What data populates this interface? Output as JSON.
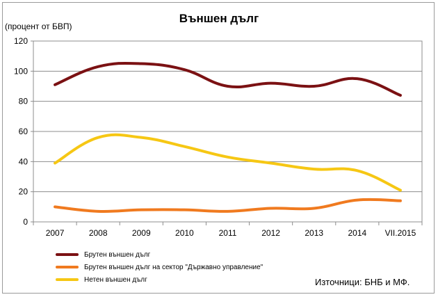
{
  "chart_data": {
    "type": "line",
    "title": "Външен дълг",
    "ylabel": "(процент от БВП)",
    "xlabel": "",
    "categories": [
      "2007",
      "2008",
      "2009",
      "2010",
      "2011",
      "2012",
      "2013",
      "2014",
      "VII.2015"
    ],
    "ylim": [
      0,
      120
    ],
    "yticks": [
      0,
      20,
      40,
      60,
      80,
      100,
      120
    ],
    "grid": true,
    "legend_position": "bottom-left",
    "series": [
      {
        "name": "Брутен външен дълг",
        "color": "#7b1113",
        "values": [
          91,
          103,
          105,
          101,
          90,
          92,
          90,
          95,
          84
        ]
      },
      {
        "name": "Брутен външен дълг на сектор \"Държавно управление\"",
        "color": "#f07a1f",
        "values": [
          10,
          7,
          8,
          8,
          7,
          9,
          9,
          14.5,
          14
        ]
      },
      {
        "name": "Нетен външен дълг",
        "color": "#f6c714",
        "values": [
          39,
          56,
          56,
          50,
          43,
          39,
          35,
          34,
          21
        ]
      }
    ]
  },
  "source_note": "Източници: БНБ и МФ."
}
